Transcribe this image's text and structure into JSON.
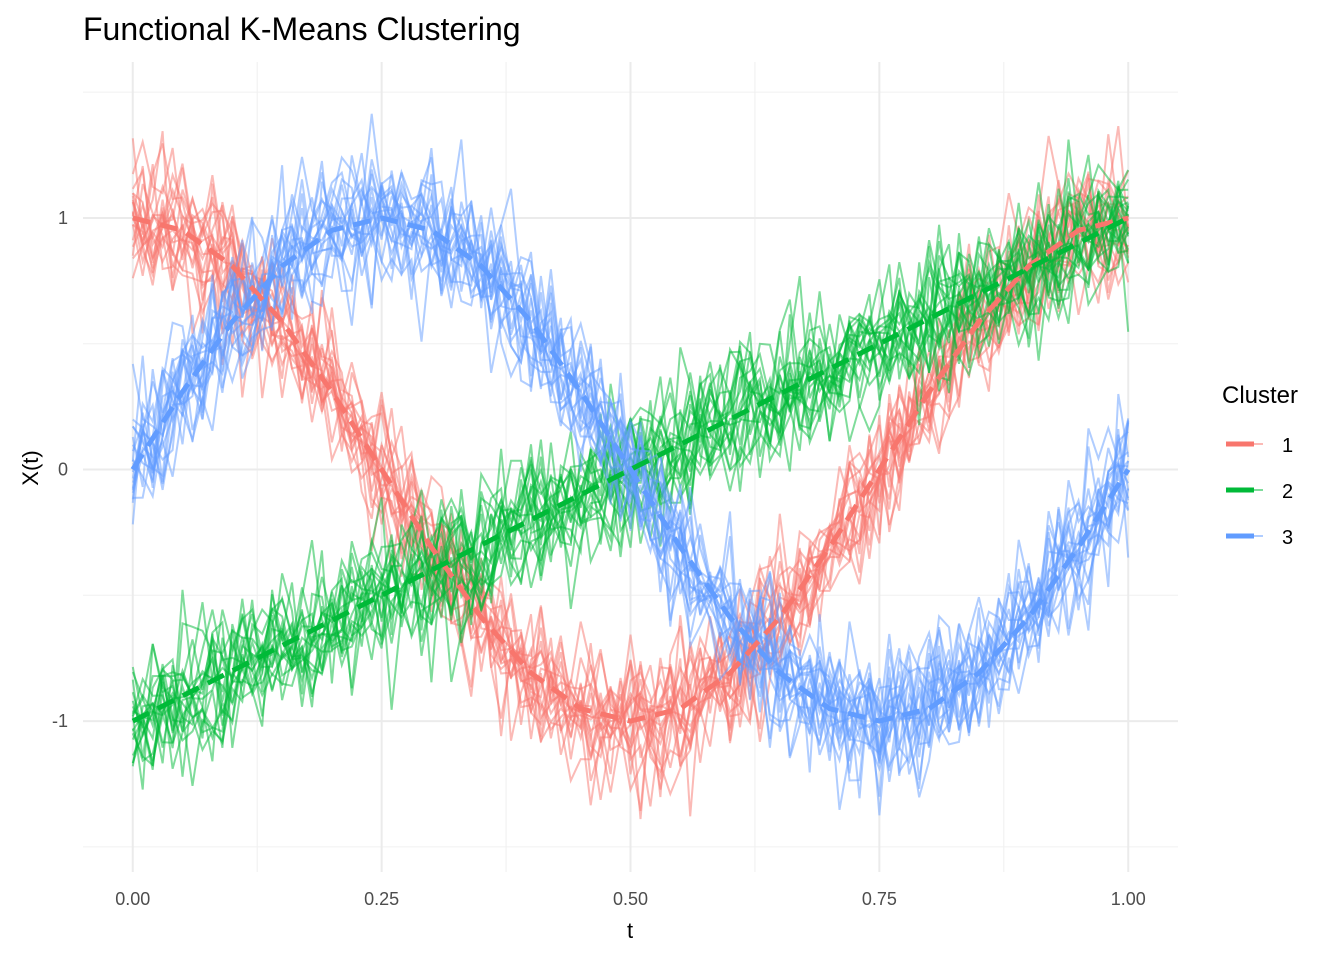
{
  "chart_data": {
    "type": "line",
    "title": "Functional K-Means Clustering",
    "xlabel": "t",
    "ylabel": "X(t)",
    "xlim": [
      -0.05,
      1.05
    ],
    "ylim": [
      -1.6,
      1.62
    ],
    "x_ticks": [
      0,
      0.25,
      0.5,
      0.75,
      1
    ],
    "x_tick_labels": [
      "0.00",
      "0.25",
      "0.50",
      "0.75",
      "1.00"
    ],
    "y_ticks": [
      -1,
      0,
      1
    ],
    "y_tick_labels": [
      "-1",
      "0",
      "1"
    ],
    "grid": true,
    "legend": {
      "title": "Cluster",
      "placement": "right"
    },
    "t": [
      0,
      0.05,
      0.1,
      0.15,
      0.2,
      0.25,
      0.3,
      0.35,
      0.4,
      0.45,
      0.5,
      0.55,
      0.6,
      0.65,
      0.7,
      0.75,
      0.8,
      0.85,
      0.9,
      0.95,
      1
    ],
    "noise_sd": 0.13,
    "curves_per_cluster": 20,
    "series": [
      {
        "name": "1",
        "color": "#F8766D",
        "mean": [
          1,
          0.951,
          0.809,
          0.588,
          0.309,
          0,
          -0.309,
          -0.588,
          -0.809,
          -0.951,
          -1,
          -0.951,
          -0.809,
          -0.588,
          -0.309,
          0,
          0.309,
          0.588,
          0.809,
          0.951,
          1
        ]
      },
      {
        "name": "2",
        "color": "#00BA38",
        "mean": [
          -1,
          -0.9,
          -0.8,
          -0.7,
          -0.6,
          -0.5,
          -0.4,
          -0.3,
          -0.2,
          -0.1,
          0,
          0.1,
          0.2,
          0.3,
          0.4,
          0.5,
          0.6,
          0.7,
          0.8,
          0.9,
          1
        ]
      },
      {
        "name": "3",
        "color": "#619CFF",
        "mean": [
          0,
          0.309,
          0.588,
          0.809,
          0.951,
          1,
          0.951,
          0.809,
          0.588,
          0.309,
          0,
          -0.309,
          -0.588,
          -0.809,
          -0.951,
          -1,
          -0.951,
          -0.809,
          -0.588,
          -0.309,
          0
        ]
      }
    ]
  }
}
